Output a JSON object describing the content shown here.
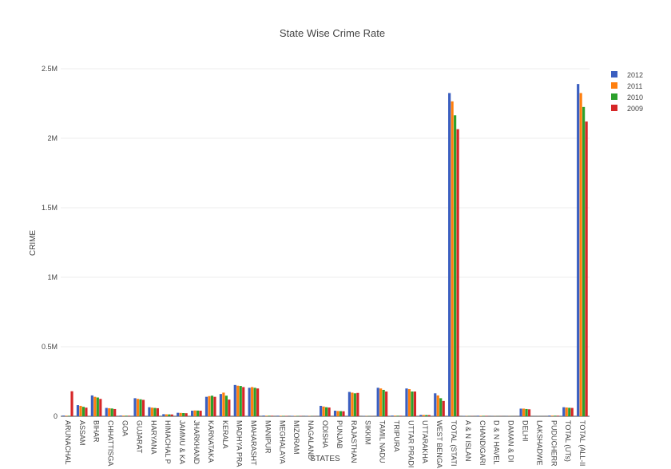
{
  "chart_data": {
    "type": "bar",
    "title": "State Wise Crime Rate",
    "xlabel": "STATES",
    "ylabel": "CRIME",
    "ylim": [
      0,
      2500000
    ],
    "yticks": [
      {
        "value": 0,
        "label": "0"
      },
      {
        "value": 500000,
        "label": "0.5M"
      },
      {
        "value": 1000000,
        "label": "1M"
      },
      {
        "value": 1500000,
        "label": "1.5M"
      },
      {
        "value": 2000000,
        "label": "2M"
      },
      {
        "value": 2500000,
        "label": "2.5M"
      }
    ],
    "grid": true,
    "legend_position": "top-right",
    "categories": [
      "ARUNACHAL",
      "ASSAM",
      "BIHAR",
      "CHHATTISGA",
      "GOA",
      "GUJARAT",
      "HARYANA",
      "HIMACHAL P",
      "JAMMU & KA",
      "JHARKHAND",
      "KARNATAKA",
      "KERALA",
      "MADHYA PRA",
      "MAHARASHT",
      "MANIPUR",
      "MEGHALAYA",
      "MIZORAM",
      "NAGALAND",
      "ODISHA",
      "PUNJAB",
      "RAJASTHAN",
      "SIKKIM",
      "TAMIL NADU",
      "TRIPURA",
      "UTTAR PRADI",
      "UTTARAKHA",
      "WEST BENGA",
      "TOTAL (STATI",
      "A & N ISLAN",
      "CHANDIGARI",
      "D & N HAVEL",
      "DAMAN & DI",
      "DELHI",
      "LAKSHADWE",
      "PUDUCHERR",
      "TOTAL (UTs)",
      "TOTAL (ALL-II"
    ],
    "series": [
      {
        "name": "2012",
        "color": "#3b5fc0",
        "values": [
          5000,
          80000,
          150000,
          60000,
          5000,
          130000,
          65000,
          15000,
          25000,
          40000,
          140000,
          160000,
          225000,
          205000,
          5000,
          4000,
          3000,
          2000,
          75000,
          40000,
          175000,
          2000,
          205000,
          5000,
          200000,
          10000,
          165000,
          2325000,
          2000,
          4000,
          1000,
          1000,
          55000,
          500,
          5000,
          65000,
          2390000
        ]
      },
      {
        "name": "2011",
        "color": "#ff7f0e",
        "values": [
          4000,
          75000,
          140000,
          58000,
          4500,
          125000,
          62000,
          14000,
          24000,
          42000,
          145000,
          170000,
          220000,
          210000,
          4000,
          3500,
          2500,
          2000,
          70000,
          38000,
          170000,
          1800,
          200000,
          4500,
          195000,
          9500,
          150000,
          2265000,
          1800,
          3500,
          1000,
          900,
          55000,
          400,
          4500,
          63000,
          2325000
        ]
      },
      {
        "name": "2010",
        "color": "#2ca02c",
        "values": [
          3500,
          68000,
          135000,
          56000,
          4000,
          122000,
          60000,
          13500,
          23000,
          41000,
          148000,
          148000,
          218000,
          205000,
          4000,
          3000,
          2500,
          1500,
          65000,
          37000,
          165000,
          1500,
          190000,
          4000,
          178000,
          9000,
          130000,
          2165000,
          1500,
          3300,
          900,
          800,
          52000,
          350,
          4200,
          61000,
          2225000
        ]
      },
      {
        "name": "2009",
        "color": "#d62728",
        "values": [
          180000,
          62000,
          125000,
          52000,
          3800,
          118000,
          58000,
          13000,
          22000,
          40000,
          140000,
          120000,
          210000,
          200000,
          3800,
          2900,
          2300,
          1400,
          63000,
          36000,
          168000,
          1400,
          178000,
          3800,
          178000,
          8500,
          110000,
          2065000,
          1400,
          3200,
          900,
          700,
          50000,
          300,
          4000,
          60000,
          2120000
        ]
      }
    ]
  }
}
